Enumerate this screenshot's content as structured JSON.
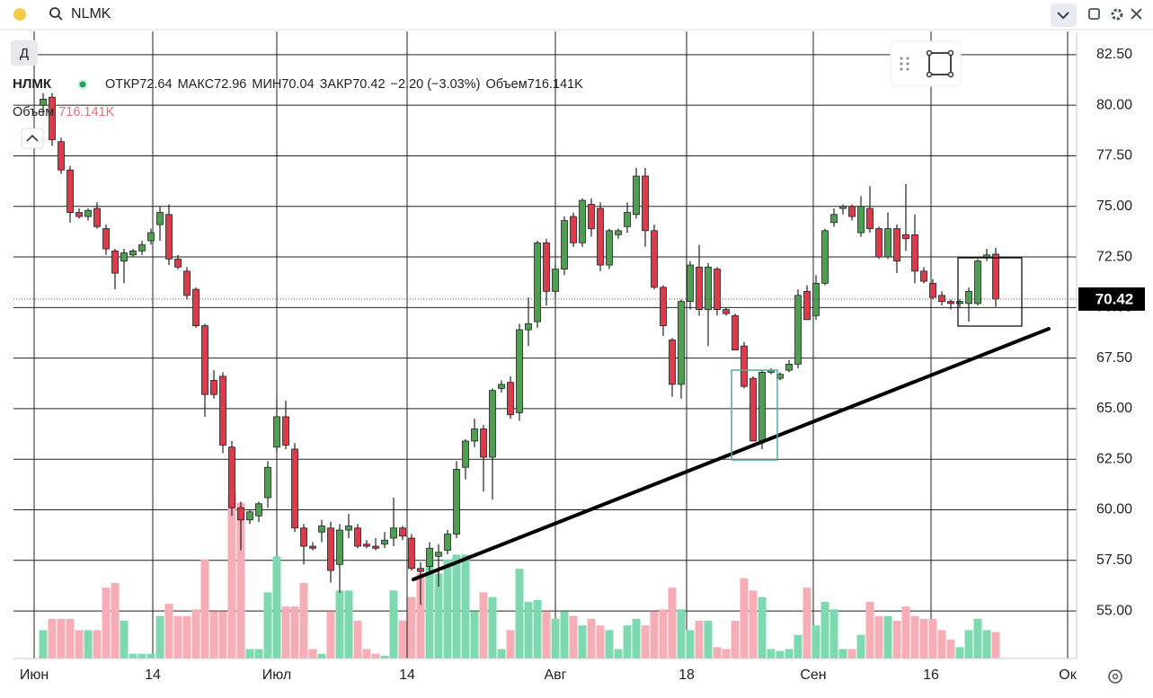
{
  "header": {
    "symbol": "NLMK"
  },
  "chart_data": {
    "type": "candlestick",
    "title": "НЛМК",
    "interval": "Д",
    "legend": {
      "open_label": "ОТКР",
      "high_label": "МАКС",
      "low_label": "МИН",
      "close_label": "ЗАКР",
      "change": "−2.20 (−3.03%)",
      "volume_label": "Объем",
      "volume_value": "716.141K"
    },
    "open": [
      80.0,
      80.4,
      78.2,
      76.8,
      74.7,
      74.5,
      74.9,
      73.9,
      72.8,
      72.3,
      72.6,
      72.8,
      73.3,
      74.1,
      74.6,
      72.4,
      71.8,
      70.9,
      69.1,
      66.4,
      66.6,
      63.1,
      60.1,
      59.5,
      59.7,
      60.6,
      63.1,
      64.6,
      63.0,
      59.1,
      58.2,
      58.9,
      59.1,
      57.3,
      59.0,
      59.1,
      58.3,
      58.2,
      58.3,
      58.6,
      59.1,
      58.6,
      57.1,
      57.2,
      57.7,
      58.0,
      58.8,
      62.1,
      63.4,
      64.0,
      62.6,
      66.0,
      66.3,
      64.8,
      68.9,
      69.3,
      73.2,
      70.8,
      71.9,
      74.5,
      73.2,
      75.1,
      74.9,
      72.1,
      73.6,
      74.0,
      74.6,
      76.5,
      73.8,
      71.0,
      68.4,
      66.2,
      70.3,
      72.0,
      69.9,
      71.9,
      69.9,
      69.6,
      68.1,
      66.5,
      63.4,
      66.8,
      66.5,
      66.9,
      67.2,
      70.8,
      69.6,
      71.2,
      74.2,
      74.9,
      75.0,
      73.7,
      74.9,
      73.9,
      72.5,
      73.9,
      73.6,
      73.6,
      71.8,
      71.2,
      70.6,
      70.3,
      70.2,
      70.2,
      70.2,
      72.5,
      72.64
    ],
    "high": [
      80.6,
      80.6,
      78.4,
      77.0,
      74.9,
      74.9,
      75.2,
      74.1,
      72.9,
      72.9,
      72.9,
      73.3,
      73.9,
      75.0,
      75.1,
      72.6,
      72.0,
      71.0,
      69.2,
      66.9,
      66.8,
      63.4,
      60.4,
      60.0,
      60.4,
      62.4,
      65.5,
      65.4,
      63.3,
      59.3,
      58.4,
      59.5,
      59.4,
      59.3,
      59.8,
      59.3,
      58.5,
      58.6,
      58.9,
      60.6,
      59.2,
      58.8,
      57.4,
      58.4,
      58.3,
      59.0,
      62.4,
      63.5,
      64.5,
      64.2,
      66.0,
      66.4,
      66.6,
      69.2,
      70.5,
      73.3,
      73.4,
      72.2,
      74.5,
      74.7,
      75.4,
      75.4,
      75.2,
      73.9,
      73.9,
      75.2,
      76.9,
      76.9,
      74.1,
      71.1,
      68.5,
      70.4,
      72.3,
      73.1,
      72.2,
      72.0,
      70.0,
      69.7,
      68.3,
      66.6,
      66.9,
      67.0,
      66.8,
      67.4,
      70.9,
      71.1,
      71.6,
      73.9,
      74.9,
      75.1,
      75.1,
      75.5,
      76.0,
      74.0,
      74.7,
      74.1,
      76.1,
      74.6,
      72.0,
      71.4,
      70.8,
      70.4,
      70.4,
      71.0,
      72.4,
      72.9,
      72.96
    ],
    "low": [
      79.5,
      78.0,
      76.6,
      74.2,
      74.4,
      74.3,
      73.9,
      72.6,
      70.9,
      71.2,
      72.5,
      72.6,
      73.1,
      73.3,
      72.1,
      71.9,
      70.4,
      69.0,
      64.6,
      65.5,
      62.8,
      59.7,
      58.0,
      59.3,
      59.4,
      60.1,
      62.8,
      63.0,
      58.9,
      57.3,
      58.0,
      58.4,
      56.4,
      55.9,
      58.6,
      58.1,
      58.1,
      58.0,
      58.1,
      58.2,
      58.5,
      57.0,
      55.3,
      56.9,
      56.2,
      57.8,
      58.6,
      61.5,
      63.1,
      60.9,
      60.5,
      65.8,
      64.5,
      64.4,
      68.1,
      69.0,
      70.1,
      70.4,
      71.6,
      73.0,
      73.0,
      73.5,
      71.8,
      71.9,
      73.4,
      73.7,
      74.4,
      73.0,
      70.9,
      68.6,
      65.6,
      65.5,
      69.9,
      69.6,
      68.1,
      69.6,
      69.6,
      67.9,
      66.0,
      63.4,
      63.0,
      66.7,
      66.4,
      66.8,
      67.0,
      69.4,
      69.4,
      71.1,
      74.0,
      74.6,
      74.3,
      73.5,
      73.7,
      72.4,
      72.4,
      71.7,
      72.8,
      71.2,
      71.2,
      70.4,
      70.1,
      69.9,
      70.0,
      69.3,
      70.1,
      72.3,
      70.04
    ],
    "close": [
      80.3,
      78.3,
      76.8,
      74.7,
      74.5,
      74.8,
      74.0,
      72.9,
      71.7,
      72.7,
      72.8,
      73.1,
      73.7,
      74.7,
      72.4,
      72.0,
      70.6,
      69.1,
      65.7,
      65.7,
      63.2,
      60.1,
      59.5,
      59.9,
      60.3,
      62.1,
      64.6,
      63.2,
      59.1,
      58.2,
      58.1,
      59.2,
      57.0,
      59.0,
      59.2,
      58.2,
      58.2,
      58.1,
      58.5,
      59.1,
      58.7,
      57.1,
      56.95,
      58.1,
      57.9,
      58.8,
      62.0,
      63.4,
      64.0,
      62.6,
      65.9,
      66.2,
      64.7,
      68.9,
      69.2,
      73.2,
      70.8,
      71.9,
      74.3,
      73.2,
      75.3,
      73.9,
      72.1,
      73.8,
      73.8,
      74.7,
      76.5,
      73.8,
      71.0,
      69.1,
      66.2,
      70.3,
      72.1,
      69.9,
      72.0,
      69.9,
      69.7,
      67.9,
      66.1,
      63.4,
      66.8,
      66.9,
      66.7,
      67.2,
      70.6,
      69.4,
      71.2,
      73.8,
      74.6,
      75.0,
      74.5,
      75.0,
      73.9,
      72.5,
      73.9,
      72.3,
      73.4,
      71.8,
      71.3,
      70.5,
      70.3,
      70.2,
      70.3,
      70.8,
      72.3,
      72.6,
      70.42
    ],
    "volume": [
      768,
      1075,
      1075,
      1075,
      768,
      768,
      768,
      1920,
      2048,
      1024,
      128,
      128,
      128,
      1152,
      1485,
      1152,
      1152,
      1331,
      2688,
      1280,
      1280,
      4480,
      4224,
      256,
      256,
      1792,
      2765,
      1408,
      1408,
      2048,
      256,
      128,
      1280,
      1843,
      1843,
      1024,
      256,
      128,
      77,
      1843,
      1024,
      1664,
      2304,
      2688,
      2304,
      2688,
      2816,
      2816,
      1280,
      1792,
      1664,
      256,
      768,
      2432,
      1536,
      1587,
      1280,
      1075,
      1280,
      1152,
      896,
      1075,
      896,
      768,
      256,
      896,
      1075,
      896,
      1280,
      1331,
      1920,
      1331,
      768,
      1024,
      1024,
      307,
      256,
      1024,
      2176,
      1843,
      1664,
      256,
      205,
      256,
      640,
      1920,
      896,
      1536,
      1331,
      256,
      256,
      640,
      1536,
      1152,
      1152,
      1024,
      1408,
      1152,
      1075,
      1075,
      768,
      512,
      307,
      768,
      1075,
      768,
      716.141
    ],
    "up_color": "#4e9f52",
    "down_color": "#dc3b4c",
    "volume_up_color": "#7fd9b0",
    "volume_down_color": "#f7adb6",
    "xlim": [
      -3.3,
      115
    ],
    "xticks": [
      {
        "value": -1,
        "label": "Июн"
      },
      {
        "value": 12.2,
        "label": "14"
      },
      {
        "value": 26,
        "label": "Июл"
      },
      {
        "value": 40.5,
        "label": "14"
      },
      {
        "value": 57,
        "label": "Авг"
      },
      {
        "value": 71.6,
        "label": "18"
      },
      {
        "value": 85.7,
        "label": "Сен"
      },
      {
        "value": 98.8,
        "label": "16"
      },
      {
        "value": 114,
        "label": "Ок"
      }
    ],
    "ylim": [
      52.65,
      83.65
    ],
    "yticks": [
      {
        "value": 55,
        "label": "55.00"
      },
      {
        "value": 57.5,
        "label": "57.50"
      },
      {
        "value": 60,
        "label": "60.00"
      },
      {
        "value": 62.5,
        "label": "62.50"
      },
      {
        "value": 65,
        "label": "65.00"
      },
      {
        "value": 67.5,
        "label": "67.50"
      },
      {
        "value": 70,
        "label": "70.00"
      },
      {
        "value": 72.5,
        "label": "72.50"
      },
      {
        "value": 75,
        "label": "75.00"
      },
      {
        "value": 77.5,
        "label": "77.50"
      },
      {
        "value": 80,
        "label": "80.00"
      },
      {
        "value": 82.5,
        "label": "82.50"
      }
    ],
    "volume_ylim": [
      0,
      17000
    ],
    "grid": true
  }
}
